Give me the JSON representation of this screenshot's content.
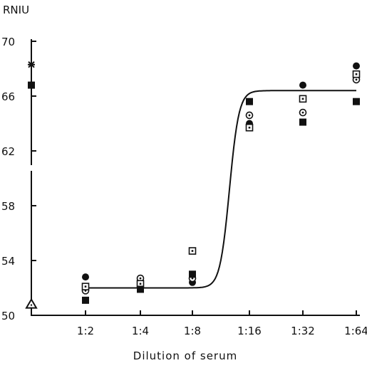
{
  "chart_data": {
    "type": "scatter",
    "title": "",
    "ylabel": "RNIU",
    "xlabel": "Dilution of serum",
    "categories": [
      "1:2",
      "1:4",
      "1:8",
      "1:16",
      "1:32",
      "1:64"
    ],
    "yticks": [
      50,
      54,
      58,
      62,
      66,
      70
    ],
    "ylim": [
      50,
      70
    ],
    "grid": false,
    "series": [
      {
        "marker": "filled-circle",
        "points": [
          [
            "1:2",
            52.8
          ],
          [
            "1:4",
            52.5
          ],
          [
            "1:8",
            52.4
          ],
          [
            "1:16",
            64.0
          ],
          [
            "1:32",
            66.8
          ],
          [
            "1:64",
            68.2
          ]
        ]
      },
      {
        "marker": "open-circle-dot",
        "points": [
          [
            "1:2",
            51.8
          ],
          [
            "1:4",
            52.7
          ],
          [
            "1:8",
            52.7
          ],
          [
            "1:16",
            64.6
          ],
          [
            "1:32",
            64.8
          ],
          [
            "1:64",
            67.2
          ]
        ]
      },
      {
        "marker": "open-square-dot",
        "points": [
          [
            "1:2",
            52.1
          ],
          [
            "1:4",
            52.3
          ],
          [
            "1:8",
            54.7
          ],
          [
            "1:16",
            63.7
          ],
          [
            "1:32",
            65.8
          ],
          [
            "1:64",
            67.6
          ]
        ]
      },
      {
        "marker": "filled-square",
        "points": [
          [
            "1:2",
            51.1
          ],
          [
            "1:4",
            51.9
          ],
          [
            "1:8",
            53.0
          ],
          [
            "1:16",
            65.6
          ],
          [
            "1:32",
            64.1
          ],
          [
            "1:64",
            65.6
          ]
        ]
      }
    ],
    "axis_markers": [
      {
        "marker": "star",
        "value": 68.3
      },
      {
        "marker": "filled-square",
        "value": 66.8
      },
      {
        "marker": "open-triangle",
        "value": 50.8
      }
    ],
    "fit_curve": {
      "type": "sigmoid",
      "points": [
        [
          "1:2",
          52.0
        ],
        [
          "1:4",
          52.2
        ],
        [
          "1:8",
          53.0
        ],
        [
          "1:16",
          64.0
        ],
        [
          "1:32",
          66.0
        ],
        [
          "1:64",
          66.4
        ]
      ]
    }
  }
}
